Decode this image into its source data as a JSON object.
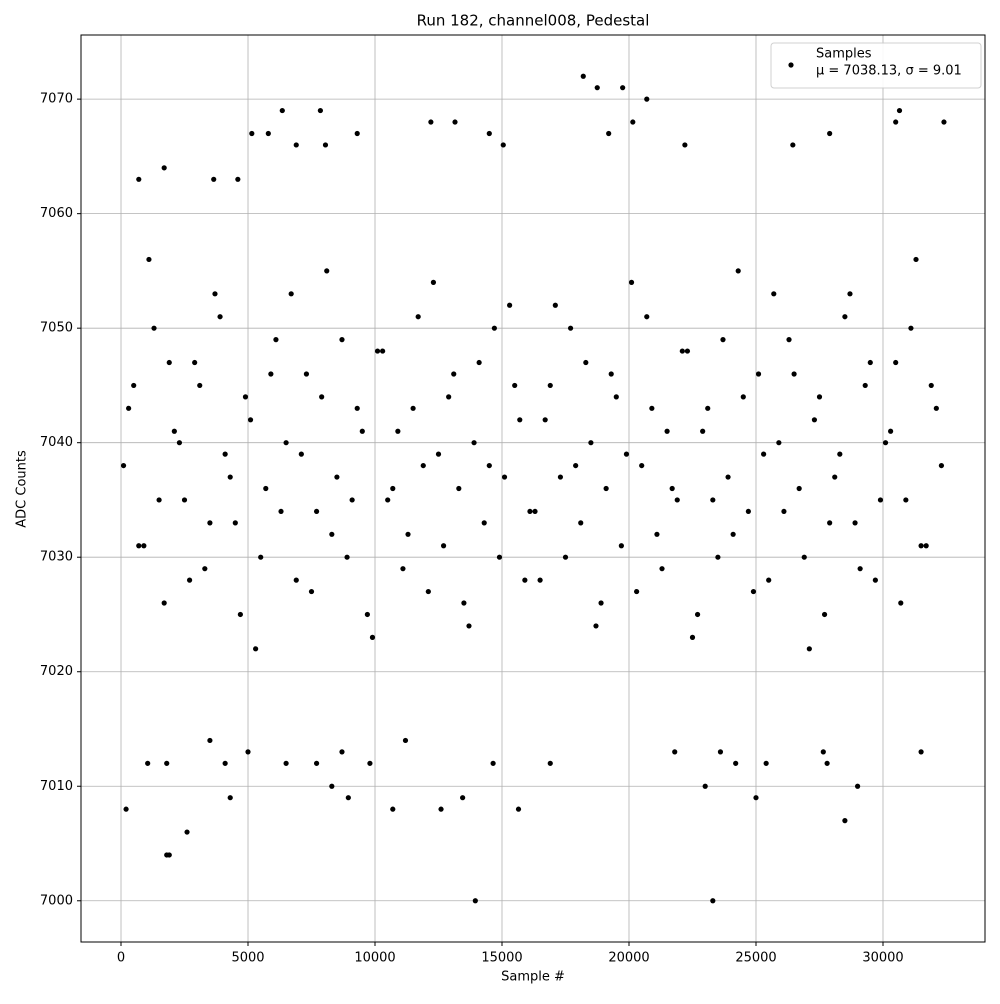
{
  "chart_data": {
    "type": "scatter",
    "title": "Run 182, channel008, Pedestal",
    "x_label": "Sample #",
    "y_label": "ADC Counts",
    "xlim": [
      -1575,
      34016
    ],
    "ylim": [
      6996.4,
      7075.6
    ],
    "xticks": [
      0,
      5000,
      10000,
      15000,
      20000,
      25000,
      30000
    ],
    "yticks": [
      7000,
      7010,
      7020,
      7030,
      7040,
      7050,
      7060,
      7070
    ],
    "grid": true,
    "legend_position": "upper right",
    "legend_note": "μ = 7038.13, σ = 9.01",
    "x": [
      100,
      500,
      900,
      1300,
      1700,
      2100,
      2500,
      2900,
      3300,
      3700,
      4100,
      4500,
      4900,
      5300,
      5700,
      6100,
      6500,
      6900,
      7300,
      7700,
      8100,
      8500,
      8900,
      9300,
      9700,
      10100,
      10500,
      10900,
      11300,
      11700,
      12100,
      12500,
      12900,
      13300,
      13700,
      14100,
      14500,
      14900,
      15300,
      15700,
      16100,
      16500,
      16900,
      17300,
      17700,
      18100,
      18500,
      18900,
      19300,
      19700,
      20100,
      20500,
      20900,
      21300,
      21700,
      22100,
      22500,
      22900,
      23300,
      23700,
      24100,
      24500,
      24900,
      25300,
      25700,
      26100,
      26500,
      26900,
      27300,
      27700,
      28100,
      28500,
      28900,
      29300,
      29700,
      30100,
      30500,
      30900,
      31300,
      31700,
      32100,
      300,
      700,
      1100,
      1500,
      1900,
      2300,
      2700,
      3100,
      3500,
      3900,
      4300,
      4700,
      5100,
      5500,
      5900,
      6300,
      6700,
      7100,
      7500,
      7900,
      8300,
      8700,
      9100,
      9500,
      9900,
      10300,
      10700,
      11100,
      11500,
      11900,
      12300,
      12700,
      13100,
      13500,
      13900,
      14300,
      14700,
      15100,
      15500,
      15900,
      16300,
      16700,
      17100,
      17500,
      17900,
      18300,
      18700,
      19100,
      19500,
      19900,
      20300,
      20700,
      21100,
      21500,
      21900,
      22300,
      22700,
      23100,
      23500,
      23900,
      24300,
      24700,
      25100,
      25500,
      25900,
      26300,
      26700,
      27100,
      27500,
      27900,
      28300,
      28700,
      29100,
      29500,
      29900,
      30300,
      30700,
      31100,
      31500,
      31900,
      32300,
      200,
      1800,
      1900,
      2600,
      4300,
      8300,
      8950,
      10700,
      12600,
      13450,
      13950,
      15650,
      23000,
      23300,
      25000,
      28500,
      29000,
      18200,
      18750,
      19750,
      20700,
      6350,
      7850,
      30650,
      32400,
      12200,
      13150,
      20150,
      30500,
      27900,
      9300,
      5150,
      5800,
      14500,
      19200,
      6900,
      8050,
      15050,
      22200,
      26450,
      700,
      1700,
      3650,
      4600,
      1050,
      1800,
      3500,
      4100,
      5000,
      6500,
      7700,
      8700,
      9800,
      11200,
      14650,
      16900,
      21800,
      23600,
      24200,
      25400,
      27800,
      31500,
      27650
    ],
    "series": [
      {
        "name": "Samples",
        "color": "#000000",
        "values": [
          7038,
          7045,
          7031,
          7050,
          7026,
          7041,
          7035,
          7047,
          7029,
          7053,
          7039,
          7033,
          7044,
          7022,
          7036,
          7049,
          7040,
          7028,
          7046,
          7034,
          7055,
          7037,
          7030,
          7043,
          7025,
          7048,
          7035,
          7041,
          7032,
          7051,
          7027,
          7039,
          7044,
          7036,
          7024,
          7047,
          7038,
          7030,
          7052,
          7042,
          7034,
          7028,
          7045,
          7037,
          7050,
          7033,
          7040,
          7026,
          7046,
          7031,
          7054,
          7038,
          7043,
          7029,
          7036,
          7048,
          7023,
          7041,
          7035,
          7049,
          7032,
          7044,
          7027,
          7039,
          7053,
          7034,
          7046,
          7030,
          7042,
          7025,
          7037,
          7051,
          7033,
          7045,
          7028,
          7040,
          7047,
          7035,
          7056,
          7031,
          7043,
          7043,
          7031,
          7056,
          7035,
          7047,
          7040,
          7028,
          7045,
          7033,
          7051,
          7037,
          7025,
          7042,
          7030,
          7046,
          7034,
          7053,
          7039,
          7027,
          7044,
          7032,
          7049,
          7035,
          7041,
          7023,
          7048,
          7036,
          7029,
          7043,
          7038,
          7054,
          7031,
          7046,
          7026,
          7040,
          7033,
          7050,
          7037,
          7045,
          7028,
          7034,
          7042,
          7052,
          7030,
          7038,
          7047,
          7024,
          7036,
          7044,
          7039,
          7027,
          7051,
          7032,
          7041,
          7035,
          7048,
          7025,
          7043,
          7030,
          7037,
          7055,
          7034,
          7046,
          7028,
          7040,
          7049,
          7036,
          7022,
          7044,
          7033,
          7039,
          7053,
          7029,
          7047,
          7035,
          7041,
          7026,
          7050,
          7031,
          7045,
          7038,
          7008,
          7004,
          7004,
          7006,
          7009,
          7010,
          7009,
          7008,
          7008,
          7009,
          7000,
          7008,
          7010,
          7000,
          7009,
          7007,
          7010,
          7072,
          7071,
          7071,
          7070,
          7069,
          7069,
          7069,
          7068,
          7068,
          7068,
          7068,
          7068,
          7067,
          7067,
          7067,
          7067,
          7067,
          7067,
          7066,
          7066,
          7066,
          7066,
          7066,
          7063,
          7064,
          7063,
          7063,
          7012,
          7012,
          7014,
          7012,
          7013,
          7012,
          7012,
          7013,
          7012,
          7014,
          7012,
          7012,
          7013,
          7013,
          7012,
          7012,
          7012,
          7013,
          7013
        ]
      }
    ]
  }
}
